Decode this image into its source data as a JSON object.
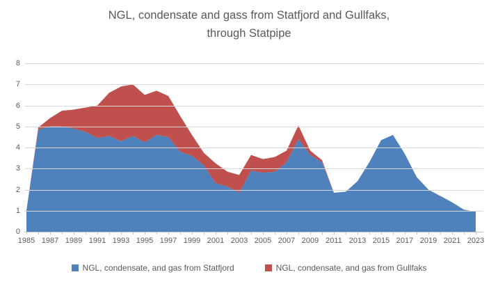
{
  "chart_data": {
    "type": "area",
    "stacked": true,
    "title": "NGL, condensate and gass from Statfjord and Gullfaks, through Statpipe",
    "title_line1": "NGL, condensate and gass from Statfjord and Gullfaks,",
    "title_line2": "through Statpipe",
    "x": [
      1985,
      1986,
      1987,
      1988,
      1989,
      1990,
      1991,
      1992,
      1993,
      1994,
      1995,
      1996,
      1997,
      1998,
      1999,
      2000,
      2001,
      2002,
      2003,
      2004,
      2005,
      2006,
      2007,
      2008,
      2009,
      2010,
      2011,
      2012,
      2013,
      2014,
      2015,
      2016,
      2017,
      2018,
      2019,
      2020,
      2021,
      2022,
      2023
    ],
    "x_tick_labels": [
      "1985",
      "1987",
      "1989",
      "1991",
      "1993",
      "1995",
      "1997",
      "1999",
      "2001",
      "2003",
      "2005",
      "2007",
      "2009",
      "2011",
      "2013",
      "2015",
      "2017",
      "2019",
      "2021",
      "2023"
    ],
    "ylim": [
      0,
      8
    ],
    "yticks": [
      0,
      1,
      2,
      3,
      4,
      5,
      6,
      7,
      8
    ],
    "grid": true,
    "legend_position": "bottom",
    "colors": {
      "grid": "#d9d9d9",
      "axis": "#bfbfbf",
      "text": "#595959"
    },
    "series": [
      {
        "name": "NGL, condensate, and gas from Statfjord",
        "color": "#4f81bd",
        "values": [
          1.0,
          4.85,
          5.0,
          5.0,
          4.9,
          4.75,
          4.45,
          4.55,
          4.3,
          4.55,
          4.25,
          4.6,
          4.5,
          3.8,
          3.6,
          3.15,
          2.3,
          2.15,
          1.85,
          2.9,
          2.8,
          2.85,
          3.3,
          4.4,
          3.65,
          3.3,
          1.85,
          1.9,
          2.4,
          3.3,
          4.35,
          4.6,
          3.7,
          2.6,
          2.0,
          1.7,
          1.4,
          1.05,
          0.95
        ]
      },
      {
        "name": "NGL, condensate, and gas from Gullfaks",
        "color": "#c0504d",
        "values": [
          0,
          0.1,
          0.4,
          0.75,
          0.9,
          1.15,
          1.55,
          2.05,
          2.6,
          2.45,
          2.25,
          2.1,
          1.95,
          1.7,
          1.0,
          0.6,
          0.95,
          0.7,
          0.85,
          0.75,
          0.65,
          0.7,
          0.55,
          0.65,
          0.2,
          0.1,
          0,
          0,
          0,
          0,
          0,
          0,
          0,
          0,
          0,
          0,
          0,
          0,
          0
        ]
      }
    ]
  }
}
